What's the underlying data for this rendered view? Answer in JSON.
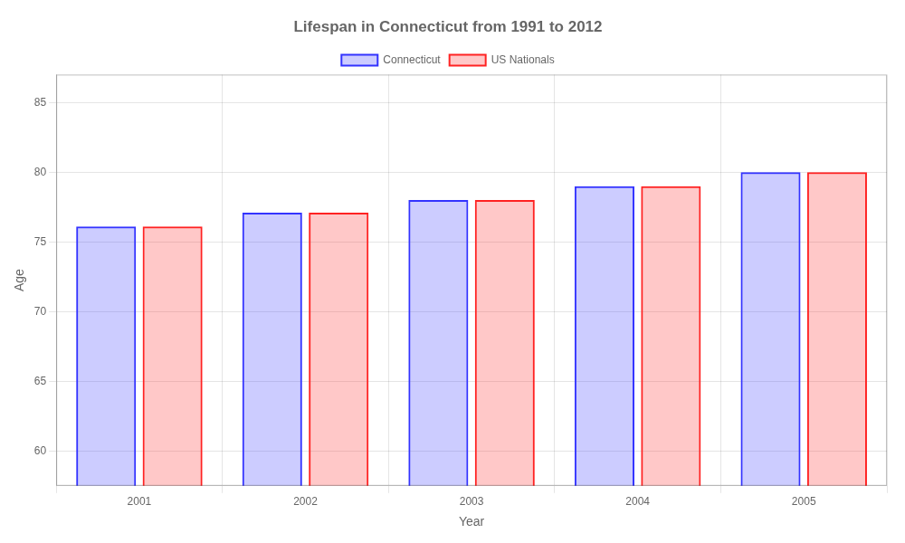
{
  "chart_data": {
    "type": "bar",
    "title": "Lifespan in Connecticut from 1991 to 2012",
    "xlabel": "Year",
    "ylabel": "Age",
    "categories": [
      "2001",
      "2002",
      "2003",
      "2004",
      "2005"
    ],
    "series": [
      {
        "name": "Connecticut",
        "color": "#3333ff",
        "values": [
          76.1,
          77.1,
          78.0,
          79.0,
          80.0
        ]
      },
      {
        "name": "US Nationals",
        "color": "#ff2222",
        "values": [
          76.1,
          77.1,
          78.0,
          79.0,
          80.0
        ]
      }
    ],
    "ylim": [
      57.5,
      87
    ],
    "yticks": [
      60,
      65,
      70,
      75,
      80,
      85
    ],
    "grid": true,
    "legend": "top"
  }
}
